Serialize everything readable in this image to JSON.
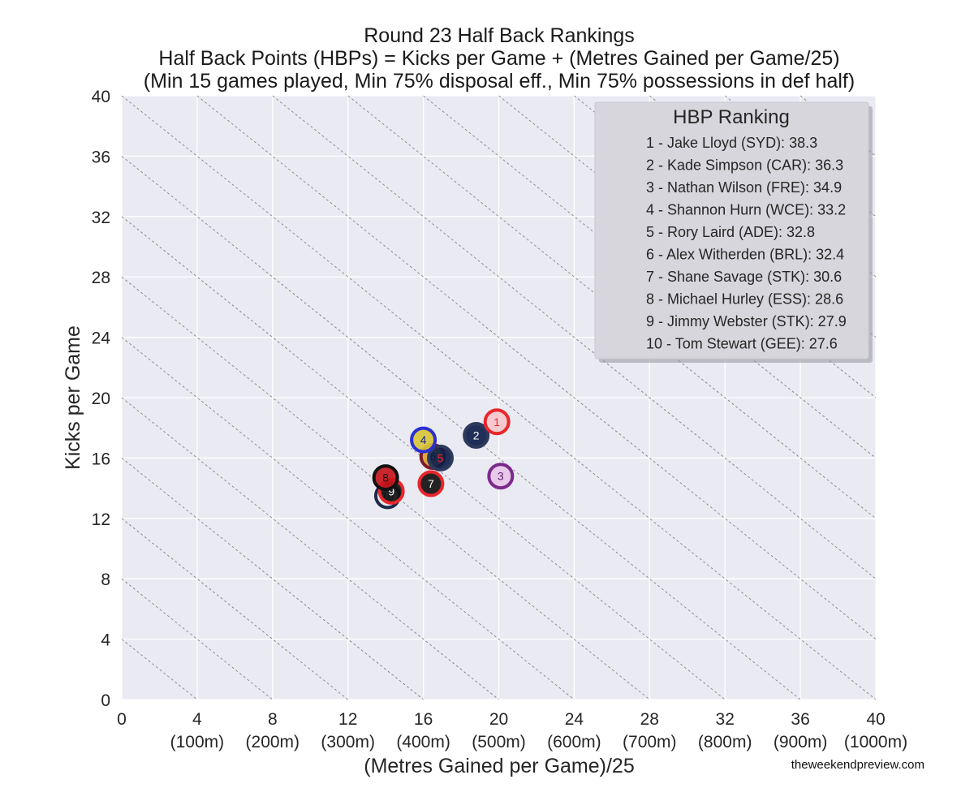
{
  "chart_data": {
    "type": "scatter",
    "title_lines": [
      "Round 23 Half Back Rankings",
      "Half Back Points (HBPs) = Kicks per Game + (Metres Gained per Game/25)",
      "(Min 15 games played, Min 75% disposal eff., Min 75% possessions in def half)"
    ],
    "xlabel": "(Metres Gained per Game)/25",
    "ylabel": "Kicks per Game",
    "xlim": [
      0,
      40
    ],
    "ylim": [
      0,
      40
    ],
    "x_ticks": [
      {
        "v": 0,
        "label": "0",
        "sub": ""
      },
      {
        "v": 4,
        "label": "4",
        "sub": "(100m)"
      },
      {
        "v": 8,
        "label": "8",
        "sub": "(200m)"
      },
      {
        "v": 12,
        "label": "12",
        "sub": "(300m)"
      },
      {
        "v": 16,
        "label": "16",
        "sub": "(400m)"
      },
      {
        "v": 20,
        "label": "20",
        "sub": "(500m)"
      },
      {
        "v": 24,
        "label": "24",
        "sub": "(600m)"
      },
      {
        "v": 28,
        "label": "28",
        "sub": "(700m)"
      },
      {
        "v": 32,
        "label": "32",
        "sub": "(800m)"
      },
      {
        "v": 36,
        "label": "36",
        "sub": "(900m)"
      },
      {
        "v": 40,
        "label": "40",
        "sub": "(1000m)"
      }
    ],
    "y_ticks": [
      0,
      4,
      8,
      12,
      16,
      20,
      24,
      28,
      32,
      36,
      40
    ],
    "grid": true,
    "diagonal_isolines": [
      4,
      8,
      12,
      16,
      20,
      24,
      28,
      32,
      36,
      40,
      44,
      48,
      52,
      56,
      60,
      64,
      68,
      72,
      76
    ],
    "legend": {
      "title": "HBP Ranking",
      "placement": "top-right",
      "items": [
        "1 - Jake Lloyd (SYD): 38.3",
        "2 - Kade Simpson (CAR): 36.3",
        "3 - Nathan Wilson (FRE): 34.9",
        "4 - Shannon Hurn (WCE): 33.2",
        "5 - Rory Laird (ADE): 32.8",
        "6 - Alex Witherden (BRL): 32.4",
        "7 - Shane Savage (STK): 30.6",
        "8 - Michael Hurley (ESS): 28.6",
        "9 - Jimmy Webster (STK): 27.9",
        "10 - Tom Stewart (GEE): 27.6"
      ]
    },
    "points": [
      {
        "label": "1",
        "x": 19.9,
        "y": 18.4,
        "fill": "#f4c7cc",
        "edge": "#e8262b",
        "text": "#e8262b"
      },
      {
        "label": "2",
        "x": 18.8,
        "y": 17.5,
        "fill": "#0e1e4a",
        "edge": "#2d3a5c",
        "text": "#ffffff"
      },
      {
        "label": "3",
        "x": 20.1,
        "y": 14.8,
        "fill": "#e7c6e8",
        "edge": "#7b2a8c",
        "text": "#5a1f6b"
      },
      {
        "label": "4",
        "x": 16.0,
        "y": 17.2,
        "fill": "#d8c43a",
        "edge": "#2b2fd0",
        "text": "#1a2a8a"
      },
      {
        "label": "5",
        "x": 16.9,
        "y": 16.0,
        "fill": "#0e1e4a",
        "edge": "#2d3a5c",
        "text": "#e8262b"
      },
      {
        "label": "6",
        "x": 16.5,
        "y": 16.1,
        "fill": "#e0a12e",
        "edge": "#7a1c2e",
        "text": "#1a1a1a"
      },
      {
        "label": "7",
        "x": 16.4,
        "y": 14.3,
        "fill": "#111111",
        "edge": "#e8262b",
        "text": "#ffffff"
      },
      {
        "label": "8",
        "x": 14.0,
        "y": 14.7,
        "fill": "#c4161c",
        "edge": "#111111",
        "text": "#111111"
      },
      {
        "label": "9",
        "x": 14.3,
        "y": 13.8,
        "fill": "#111111",
        "edge": "#e8262b",
        "text": "#ffffff"
      },
      {
        "label": "10",
        "x": 14.1,
        "y": 13.5,
        "fill": "#e6e6ec",
        "edge": "#1b2a4a",
        "text": "#1b2a4a"
      }
    ]
  },
  "credit": "theweekendpreview.com",
  "colors": {
    "plot_background": "#eaeaf2",
    "grid": "#ffffff",
    "isoline": "#8c8c8c",
    "legend_background": "#d6d6dc"
  }
}
